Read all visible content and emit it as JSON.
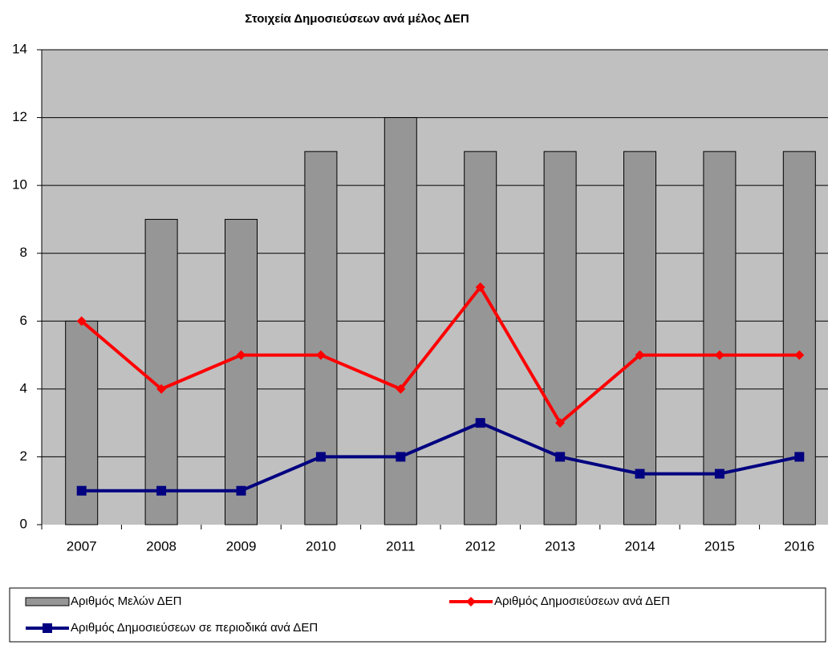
{
  "chart_data": {
    "type": "bar_line",
    "title": "Στοιχεία Δημοσιεύσεων ανά μέλος ΔΕΠ",
    "categories": [
      "2007",
      "2008",
      "2009",
      "2010",
      "2011",
      "2012",
      "2013",
      "2014",
      "2015",
      "2016"
    ],
    "series": [
      {
        "name": "Αριθμός Μελών ΔΕΠ",
        "type": "bar",
        "color": "#969696",
        "values": [
          6,
          9,
          9,
          11,
          12,
          11,
          11,
          11,
          11,
          11
        ]
      },
      {
        "name": "Αριθμός Δημοσιεύσεων ανά ΔΕΠ",
        "type": "line",
        "marker": "diamond",
        "color": "#ff0000",
        "values": [
          6,
          4,
          5,
          5,
          4,
          7,
          3,
          5,
          5,
          5
        ]
      },
      {
        "name": "Αριθμός Δημοσιεύσεων σε περιοδικά ανά ΔΕΠ",
        "type": "line",
        "marker": "square",
        "color": "#000080",
        "values": [
          1,
          1,
          1,
          2,
          2,
          3,
          2,
          1.5,
          1.5,
          2
        ]
      }
    ],
    "ylim": [
      0,
      14
    ],
    "yticks": [
      0,
      2,
      4,
      6,
      8,
      10,
      12,
      14
    ],
    "grid": true,
    "legend": "bottom"
  }
}
